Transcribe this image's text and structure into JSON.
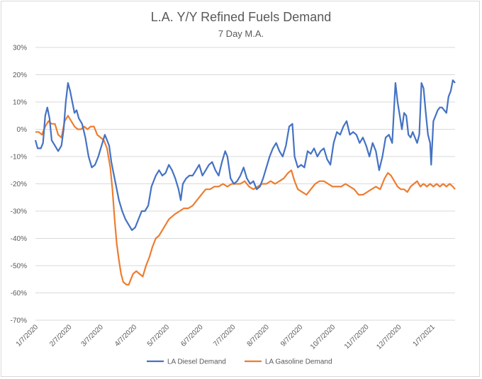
{
  "chart_data": {
    "type": "line",
    "title": "L.A. Y/Y Refined Fuels Demand",
    "subtitle": "7 Day M.A.",
    "xlabel": "",
    "ylabel": "",
    "ylim": [
      -70,
      30
    ],
    "ytick_labels": [
      "30%",
      "20%",
      "10%",
      "0%",
      "-10%",
      "-20%",
      "-30%",
      "-40%",
      "-50%",
      "-60%",
      "-70%"
    ],
    "x_tick_labels": [
      "1/7/2020",
      "2/7/2020",
      "3/7/2020",
      "4/7/2020",
      "5/7/2020",
      "6/7/2020",
      "7/7/2020",
      "8/7/2020",
      "9/7/2020",
      "10/7/2020",
      "11/7/2020",
      "12/7/2020",
      "1/7/2021"
    ],
    "x_range": [
      "2020-01-07",
      "2021-01-28"
    ],
    "grid": "horizontal",
    "legend": "bottom",
    "series": [
      {
        "name": "LA Diesel Demand",
        "color": "#4472c4",
        "points": [
          [
            "2020-01-07",
            -4
          ],
          [
            "2020-01-09",
            -7
          ],
          [
            "2020-01-12",
            -7
          ],
          [
            "2020-01-14",
            -5
          ],
          [
            "2020-01-16",
            5
          ],
          [
            "2020-01-18",
            8
          ],
          [
            "2020-01-20",
            4
          ],
          [
            "2020-01-22",
            -4
          ],
          [
            "2020-01-25",
            -6
          ],
          [
            "2020-01-28",
            -8
          ],
          [
            "2020-01-31",
            -6
          ],
          [
            "2020-02-02",
            0
          ],
          [
            "2020-02-04",
            10
          ],
          [
            "2020-02-06",
            17
          ],
          [
            "2020-02-08",
            14
          ],
          [
            "2020-02-10",
            10
          ],
          [
            "2020-02-12",
            6
          ],
          [
            "2020-02-14",
            7
          ],
          [
            "2020-02-16",
            4
          ],
          [
            "2020-02-19",
            2
          ],
          [
            "2020-02-22",
            -3
          ],
          [
            "2020-02-25",
            -10
          ],
          [
            "2020-02-28",
            -14
          ],
          [
            "2020-03-02",
            -13
          ],
          [
            "2020-03-05",
            -10
          ],
          [
            "2020-03-08",
            -6
          ],
          [
            "2020-03-11",
            -2
          ],
          [
            "2020-03-13",
            -4
          ],
          [
            "2020-03-15",
            -6
          ],
          [
            "2020-03-17",
            -12
          ],
          [
            "2020-03-19",
            -16
          ],
          [
            "2020-03-21",
            -20
          ],
          [
            "2020-03-24",
            -26
          ],
          [
            "2020-03-27",
            -30
          ],
          [
            "2020-03-30",
            -33
          ],
          [
            "2020-04-02",
            -35
          ],
          [
            "2020-04-05",
            -37
          ],
          [
            "2020-04-08",
            -36
          ],
          [
            "2020-04-11",
            -33
          ],
          [
            "2020-04-14",
            -30
          ],
          [
            "2020-04-17",
            -30
          ],
          [
            "2020-04-20",
            -28
          ],
          [
            "2020-04-23",
            -21
          ],
          [
            "2020-04-27",
            -17
          ],
          [
            "2020-04-30",
            -15
          ],
          [
            "2020-05-03",
            -17
          ],
          [
            "2020-05-06",
            -16
          ],
          [
            "2020-05-09",
            -13
          ],
          [
            "2020-05-12",
            -15
          ],
          [
            "2020-05-15",
            -18
          ],
          [
            "2020-05-18",
            -22
          ],
          [
            "2020-05-20",
            -26
          ],
          [
            "2020-05-22",
            -20
          ],
          [
            "2020-05-25",
            -18
          ],
          [
            "2020-05-28",
            -17
          ],
          [
            "2020-05-31",
            -17
          ],
          [
            "2020-06-03",
            -15
          ],
          [
            "2020-06-06",
            -13
          ],
          [
            "2020-06-09",
            -17
          ],
          [
            "2020-06-12",
            -15
          ],
          [
            "2020-06-15",
            -13
          ],
          [
            "2020-06-18",
            -12
          ],
          [
            "2020-06-21",
            -15
          ],
          [
            "2020-06-24",
            -17
          ],
          [
            "2020-06-27",
            -12
          ],
          [
            "2020-06-30",
            -8
          ],
          [
            "2020-07-02",
            -10
          ],
          [
            "2020-07-05",
            -18
          ],
          [
            "2020-07-08",
            -20
          ],
          [
            "2020-07-11",
            -19
          ],
          [
            "2020-07-14",
            -17
          ],
          [
            "2020-07-17",
            -14
          ],
          [
            "2020-07-20",
            -18
          ],
          [
            "2020-07-23",
            -20
          ],
          [
            "2020-07-26",
            -19
          ],
          [
            "2020-07-29",
            -22
          ],
          [
            "2020-08-01",
            -21
          ],
          [
            "2020-08-04",
            -18
          ],
          [
            "2020-08-07",
            -14
          ],
          [
            "2020-08-10",
            -10
          ],
          [
            "2020-08-13",
            -7
          ],
          [
            "2020-08-16",
            -5
          ],
          [
            "2020-08-19",
            -8
          ],
          [
            "2020-08-22",
            -10
          ],
          [
            "2020-08-25",
            -6
          ],
          [
            "2020-08-28",
            1
          ],
          [
            "2020-08-31",
            2
          ],
          [
            "2020-09-02",
            -10
          ],
          [
            "2020-09-05",
            -14
          ],
          [
            "2020-09-08",
            -13
          ],
          [
            "2020-09-11",
            -14
          ],
          [
            "2020-09-14",
            -8
          ],
          [
            "2020-09-17",
            -9
          ],
          [
            "2020-09-20",
            -7
          ],
          [
            "2020-09-23",
            -10
          ],
          [
            "2020-09-26",
            -8
          ],
          [
            "2020-09-29",
            -7
          ],
          [
            "2020-10-02",
            -11
          ],
          [
            "2020-10-05",
            -13
          ],
          [
            "2020-10-08",
            -5
          ],
          [
            "2020-10-11",
            -1
          ],
          [
            "2020-10-14",
            -2
          ],
          [
            "2020-10-17",
            1
          ],
          [
            "2020-10-20",
            3
          ],
          [
            "2020-10-23",
            -2
          ],
          [
            "2020-10-26",
            -1
          ],
          [
            "2020-10-29",
            -2
          ],
          [
            "2020-11-01",
            -5
          ],
          [
            "2020-11-04",
            -3
          ],
          [
            "2020-11-07",
            -6
          ],
          [
            "2020-11-10",
            -10
          ],
          [
            "2020-11-13",
            -5
          ],
          [
            "2020-11-16",
            -8
          ],
          [
            "2020-11-19",
            -15
          ],
          [
            "2020-11-22",
            -10
          ],
          [
            "2020-11-25",
            -3
          ],
          [
            "2020-11-28",
            -2
          ],
          [
            "2020-12-01",
            -5
          ],
          [
            "2020-12-04",
            17
          ],
          [
            "2020-12-06",
            10
          ],
          [
            "2020-12-08",
            5
          ],
          [
            "2020-12-10",
            0
          ],
          [
            "2020-12-12",
            6
          ],
          [
            "2020-12-14",
            5
          ],
          [
            "2020-12-16",
            -2
          ],
          [
            "2020-12-18",
            -3
          ],
          [
            "2020-12-20",
            -1
          ],
          [
            "2020-12-22",
            -3
          ],
          [
            "2020-12-24",
            -5
          ],
          [
            "2020-12-26",
            -2
          ],
          [
            "2020-12-28",
            17
          ],
          [
            "2020-12-30",
            15
          ],
          [
            "2021-01-01",
            6
          ],
          [
            "2021-01-03",
            -2
          ],
          [
            "2021-01-05",
            -5
          ],
          [
            "2021-01-06",
            -13
          ],
          [
            "2021-01-08",
            3
          ],
          [
            "2021-01-10",
            5
          ],
          [
            "2021-01-12",
            7
          ],
          [
            "2021-01-14",
            8
          ],
          [
            "2021-01-16",
            8
          ],
          [
            "2021-01-18",
            7
          ],
          [
            "2021-01-20",
            6
          ],
          [
            "2021-01-22",
            12
          ],
          [
            "2021-01-24",
            14
          ],
          [
            "2021-01-26",
            18
          ],
          [
            "2021-01-28",
            17
          ]
        ]
      },
      {
        "name": "LA Gasoline Demand",
        "color": "#ed7d31",
        "points": [
          [
            "2020-01-07",
            -1
          ],
          [
            "2020-01-10",
            -1
          ],
          [
            "2020-01-13",
            -2
          ],
          [
            "2020-01-16",
            1
          ],
          [
            "2020-01-19",
            3
          ],
          [
            "2020-01-22",
            2
          ],
          [
            "2020-01-25",
            2
          ],
          [
            "2020-01-28",
            -2
          ],
          [
            "2020-01-31",
            -3
          ],
          [
            "2020-02-03",
            3
          ],
          [
            "2020-02-06",
            5
          ],
          [
            "2020-02-09",
            3
          ],
          [
            "2020-02-12",
            1
          ],
          [
            "2020-02-15",
            0
          ],
          [
            "2020-02-18",
            0
          ],
          [
            "2020-02-21",
            1
          ],
          [
            "2020-02-24",
            0
          ],
          [
            "2020-02-27",
            1
          ],
          [
            "2020-03-01",
            1
          ],
          [
            "2020-03-04",
            -2
          ],
          [
            "2020-03-07",
            -3
          ],
          [
            "2020-03-10",
            -4
          ],
          [
            "2020-03-13",
            -7
          ],
          [
            "2020-03-16",
            -14
          ],
          [
            "2020-03-18",
            -22
          ],
          [
            "2020-03-20",
            -33
          ],
          [
            "2020-03-22",
            -42
          ],
          [
            "2020-03-24",
            -48
          ],
          [
            "2020-03-26",
            -53
          ],
          [
            "2020-03-28",
            -56
          ],
          [
            "2020-03-31",
            -57
          ],
          [
            "2020-04-02",
            -57
          ],
          [
            "2020-04-04",
            -55
          ],
          [
            "2020-04-06",
            -53
          ],
          [
            "2020-04-09",
            -52
          ],
          [
            "2020-04-12",
            -53
          ],
          [
            "2020-04-15",
            -54
          ],
          [
            "2020-04-18",
            -50
          ],
          [
            "2020-04-21",
            -47
          ],
          [
            "2020-04-24",
            -43
          ],
          [
            "2020-04-27",
            -40
          ],
          [
            "2020-04-30",
            -39
          ],
          [
            "2020-05-03",
            -37
          ],
          [
            "2020-05-06",
            -35
          ],
          [
            "2020-05-09",
            -33
          ],
          [
            "2020-05-12",
            -32
          ],
          [
            "2020-05-15",
            -31
          ],
          [
            "2020-05-19",
            -30
          ],
          [
            "2020-05-23",
            -29
          ],
          [
            "2020-05-27",
            -29
          ],
          [
            "2020-05-31",
            -28
          ],
          [
            "2020-06-04",
            -26
          ],
          [
            "2020-06-08",
            -24
          ],
          [
            "2020-06-12",
            -22
          ],
          [
            "2020-06-16",
            -22
          ],
          [
            "2020-06-20",
            -21
          ],
          [
            "2020-06-24",
            -21
          ],
          [
            "2020-06-28",
            -20
          ],
          [
            "2020-07-02",
            -21
          ],
          [
            "2020-07-06",
            -20
          ],
          [
            "2020-07-10",
            -20
          ],
          [
            "2020-07-14",
            -20
          ],
          [
            "2020-07-18",
            -19
          ],
          [
            "2020-07-22",
            -21
          ],
          [
            "2020-07-26",
            -22
          ],
          [
            "2020-07-30",
            -21
          ],
          [
            "2020-08-03",
            -20
          ],
          [
            "2020-08-07",
            -20
          ],
          [
            "2020-08-11",
            -19
          ],
          [
            "2020-08-15",
            -20
          ],
          [
            "2020-08-19",
            -19
          ],
          [
            "2020-08-23",
            -18
          ],
          [
            "2020-08-27",
            -16
          ],
          [
            "2020-08-30",
            -15
          ],
          [
            "2020-09-02",
            -19
          ],
          [
            "2020-09-05",
            -22
          ],
          [
            "2020-09-09",
            -23
          ],
          [
            "2020-09-13",
            -24
          ],
          [
            "2020-09-17",
            -22
          ],
          [
            "2020-09-21",
            -20
          ],
          [
            "2020-09-25",
            -19
          ],
          [
            "2020-09-29",
            -19
          ],
          [
            "2020-10-03",
            -20
          ],
          [
            "2020-10-07",
            -21
          ],
          [
            "2020-10-11",
            -21
          ],
          [
            "2020-10-15",
            -21
          ],
          [
            "2020-10-19",
            -20
          ],
          [
            "2020-10-23",
            -21
          ],
          [
            "2020-10-27",
            -22
          ],
          [
            "2020-10-31",
            -24
          ],
          [
            "2020-11-04",
            -24
          ],
          [
            "2020-11-08",
            -23
          ],
          [
            "2020-11-12",
            -22
          ],
          [
            "2020-11-16",
            -21
          ],
          [
            "2020-11-20",
            -22
          ],
          [
            "2020-11-24",
            -18
          ],
          [
            "2020-11-27",
            -16
          ],
          [
            "2020-11-30",
            -17
          ],
          [
            "2020-12-03",
            -19
          ],
          [
            "2020-12-06",
            -21
          ],
          [
            "2020-12-09",
            -22
          ],
          [
            "2020-12-12",
            -22
          ],
          [
            "2020-12-15",
            -23
          ],
          [
            "2020-12-18",
            -21
          ],
          [
            "2020-12-21",
            -20
          ],
          [
            "2020-12-24",
            -19
          ],
          [
            "2020-12-27",
            -21
          ],
          [
            "2020-12-30",
            -20
          ],
          [
            "2021-01-02",
            -21
          ],
          [
            "2021-01-05",
            -20
          ],
          [
            "2021-01-08",
            -21
          ],
          [
            "2021-01-11",
            -20
          ],
          [
            "2021-01-14",
            -21
          ],
          [
            "2021-01-17",
            -20
          ],
          [
            "2021-01-20",
            -21
          ],
          [
            "2021-01-23",
            -20
          ],
          [
            "2021-01-26",
            -21
          ],
          [
            "2021-01-28",
            -22
          ]
        ]
      }
    ]
  }
}
